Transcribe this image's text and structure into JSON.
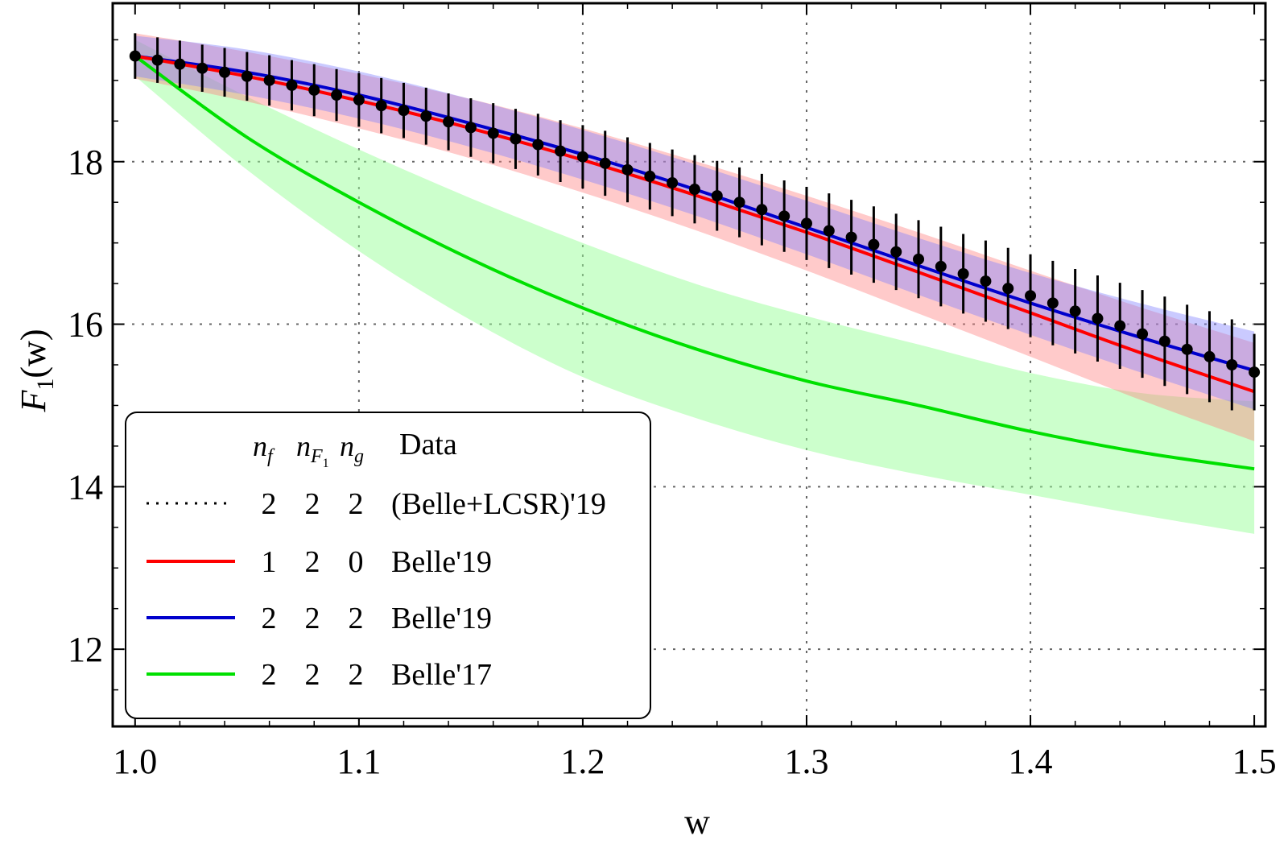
{
  "chart_data": {
    "type": "line",
    "title": "",
    "xlabel": "w",
    "ylabel": "F",
    "ylabel_sub": "1",
    "ylabel_arg": "(w)",
    "xlim": [
      0.99,
      1.505
    ],
    "ylim": [
      11.05,
      19.95
    ],
    "xticks": [
      1.0,
      1.1,
      1.2,
      1.3,
      1.4,
      1.5
    ],
    "xtick_labels": [
      "1.0",
      "1.1",
      "1.2",
      "1.3",
      "1.4",
      "1.5"
    ],
    "yticks": [
      12,
      14,
      16,
      18
    ],
    "ytick_labels": [
      "12",
      "14",
      "16",
      "18"
    ],
    "grid": true,
    "legend_position": "bottom-left",
    "legend": {
      "header": {
        "nf": "n",
        "nf_sub": "f",
        "nF1": "n",
        "nF1_sub": "F",
        "nF1_subsub": "1",
        "ng": "n",
        "ng_sub": "g",
        "data": "Data"
      },
      "rows": [
        {
          "style": "dotted",
          "color": "#000000",
          "nf": "2",
          "nF1": "2",
          "ng": "2",
          "label": "(Belle+LCSR)'19"
        },
        {
          "style": "solid",
          "color": "#ff0000",
          "nf": "1",
          "nF1": "2",
          "ng": "0",
          "label": "Belle'19"
        },
        {
          "style": "solid",
          "color": "#0000cc",
          "nf": "2",
          "nF1": "2",
          "ng": "2",
          "label": "Belle'19"
        },
        {
          "style": "solid",
          "color": "#00e000",
          "nf": "2",
          "nF1": "2",
          "ng": "2",
          "label": "Belle'17"
        }
      ]
    },
    "series": [
      {
        "name": "Belle'19 (2,2,2)",
        "color": "#0000cc",
        "band_color": "#8080ff",
        "x": [
          1.0,
          1.05,
          1.1,
          1.15,
          1.2,
          1.25,
          1.3,
          1.35,
          1.4,
          1.45,
          1.5
        ],
        "y": [
          19.3,
          19.1,
          18.82,
          18.47,
          18.09,
          17.66,
          17.19,
          16.72,
          16.26,
          15.83,
          15.43
        ],
        "lower": [
          19.05,
          18.82,
          18.53,
          18.18,
          17.78,
          17.34,
          16.86,
          16.36,
          15.87,
          15.4,
          14.95
        ],
        "upper": [
          19.55,
          19.38,
          19.11,
          18.77,
          18.39,
          17.97,
          17.52,
          17.06,
          16.63,
          16.25,
          15.91
        ]
      },
      {
        "name": "Belle'19 (1,2,0)",
        "color": "#ff0000",
        "band_color": "#ff8080",
        "x": [
          1.0,
          1.05,
          1.1,
          1.15,
          1.2,
          1.25,
          1.3,
          1.35,
          1.4,
          1.45,
          1.5
        ],
        "y": [
          19.3,
          19.05,
          18.75,
          18.41,
          18.02,
          17.59,
          17.13,
          16.64,
          16.14,
          15.64,
          15.17
        ],
        "lower": [
          19.02,
          18.74,
          18.41,
          18.04,
          17.62,
          17.16,
          16.66,
          16.13,
          15.6,
          15.06,
          14.56
        ],
        "upper": [
          19.58,
          19.35,
          19.08,
          18.77,
          18.41,
          18.01,
          17.58,
          17.13,
          16.66,
          16.2,
          15.77
        ]
      },
      {
        "name": "Belle'17 (2,2,2)",
        "color": "#00e000",
        "band_color": "#99ff99",
        "x": [
          1.0,
          1.05,
          1.1,
          1.15,
          1.2,
          1.25,
          1.3,
          1.35,
          1.4,
          1.45,
          1.5
        ],
        "y": [
          19.3,
          18.3,
          17.5,
          16.8,
          16.2,
          15.7,
          15.3,
          15.0,
          14.68,
          14.42,
          14.22
        ],
        "lower": [
          19.05,
          17.9,
          16.9,
          16.05,
          15.35,
          14.85,
          14.45,
          14.15,
          13.9,
          13.65,
          13.42
        ],
        "upper": [
          19.5,
          18.8,
          18.15,
          17.55,
          17.0,
          16.5,
          16.1,
          15.75,
          15.4,
          15.15,
          15.05
        ]
      }
    ],
    "points": {
      "name": "(Belle+LCSR)'19 (2,2,2)",
      "color": "#000000",
      "x": [
        1.0,
        1.01,
        1.02,
        1.03,
        1.04,
        1.05,
        1.06,
        1.07,
        1.08,
        1.09,
        1.1,
        1.11,
        1.12,
        1.13,
        1.14,
        1.15,
        1.16,
        1.17,
        1.18,
        1.19,
        1.2,
        1.21,
        1.22,
        1.23,
        1.24,
        1.25,
        1.26,
        1.27,
        1.28,
        1.29,
        1.3,
        1.31,
        1.32,
        1.33,
        1.34,
        1.35,
        1.36,
        1.37,
        1.38,
        1.39,
        1.4,
        1.41,
        1.42,
        1.43,
        1.44,
        1.45,
        1.46,
        1.47,
        1.48,
        1.49,
        1.5
      ],
      "y": [
        19.3,
        19.25,
        19.2,
        19.15,
        19.1,
        19.05,
        19.0,
        18.94,
        18.88,
        18.82,
        18.76,
        18.69,
        18.63,
        18.56,
        18.49,
        18.42,
        18.35,
        18.28,
        18.21,
        18.13,
        18.06,
        17.98,
        17.9,
        17.82,
        17.74,
        17.66,
        17.58,
        17.5,
        17.41,
        17.33,
        17.24,
        17.15,
        17.07,
        16.98,
        16.89,
        16.8,
        16.71,
        16.62,
        16.53,
        16.44,
        16.35,
        16.26,
        16.16,
        16.07,
        15.98,
        15.88,
        15.79,
        15.69,
        15.6,
        15.5,
        15.41
      ],
      "err": [
        0.28,
        0.28,
        0.29,
        0.29,
        0.3,
        0.3,
        0.31,
        0.31,
        0.32,
        0.32,
        0.33,
        0.34,
        0.34,
        0.35,
        0.35,
        0.36,
        0.37,
        0.37,
        0.38,
        0.38,
        0.39,
        0.4,
        0.4,
        0.41,
        0.41,
        0.42,
        0.43,
        0.43,
        0.44,
        0.44,
        0.45,
        0.46,
        0.46,
        0.47,
        0.47,
        0.48,
        0.49,
        0.49,
        0.5,
        0.5,
        0.51,
        0.52,
        0.52,
        0.53,
        0.53,
        0.54,
        0.55,
        0.55,
        0.56,
        0.56,
        0.47
      ]
    }
  }
}
